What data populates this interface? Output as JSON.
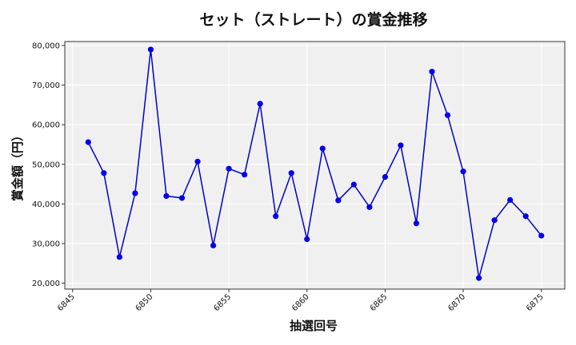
{
  "chart_data": {
    "type": "line",
    "title": "セット（ストレート）の賞金推移",
    "xlabel": "抽選回号",
    "ylabel": "賞金額（円）",
    "xlim": [
      6844.5,
      6876.5
    ],
    "ylim": [
      18500,
      81000
    ],
    "xticks": [
      6845,
      6850,
      6855,
      6860,
      6865,
      6870,
      6875
    ],
    "yticks": [
      20000,
      30000,
      40000,
      50000,
      60000,
      70000,
      80000
    ],
    "ytick_labels": [
      "20,000",
      "30,000",
      "40,000",
      "50,000",
      "60,000",
      "70,000",
      "80,000"
    ],
    "grid": true,
    "colors": {
      "line": "#0000cc",
      "marker": "#0000ee",
      "plot_bg": "#f0f0f0",
      "grid": "#ffffff"
    },
    "series": [
      {
        "x": [
          6846,
          6847,
          6848,
          6849,
          6850,
          6851,
          6852,
          6853,
          6854,
          6855,
          6856,
          6857,
          6858,
          6859,
          6860,
          6861,
          6862,
          6863,
          6864,
          6865,
          6866,
          6867,
          6868,
          6869,
          6870,
          6871,
          6872,
          6873,
          6874,
          6875
        ],
        "y": [
          55600,
          47800,
          26600,
          42700,
          79000,
          42000,
          41500,
          50700,
          29500,
          48900,
          47400,
          65300,
          36900,
          47800,
          31100,
          54000,
          40900,
          44900,
          39200,
          46800,
          54800,
          35100,
          73400,
          62400,
          48200,
          21300,
          35900,
          41000,
          36900,
          32000
        ]
      }
    ]
  }
}
